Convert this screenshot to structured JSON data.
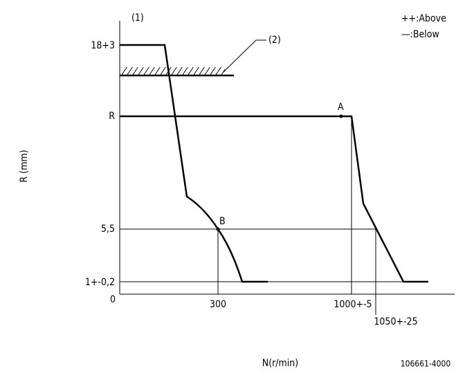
{
  "labels": {
    "marker_1": "(1)",
    "legend_above": "++:Above",
    "legend_below": "—:Below",
    "y_18": "18+3",
    "marker_2": "(2)",
    "y_r": "R",
    "point_a": "A",
    "y_axis_title": "R (mm)",
    "y_55": "5,5",
    "point_b": "B",
    "y_1": "1+-0,2",
    "origin": "0",
    "x_300": "300",
    "x_1000": "1000+-5",
    "x_1050": "1050+-25",
    "x_axis_title": "N(r/min)",
    "part_number": "106661-4000"
  }
}
